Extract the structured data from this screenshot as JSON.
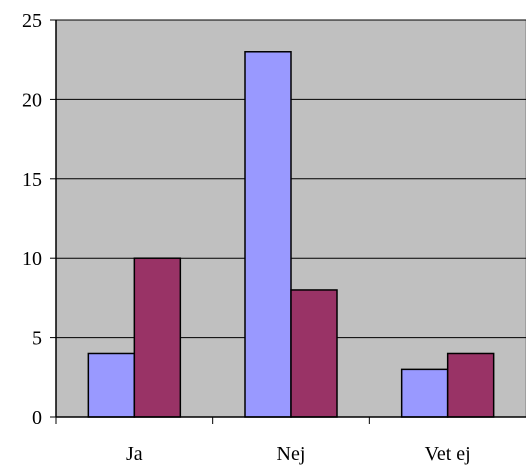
{
  "chart_data": {
    "type": "bar",
    "categories": [
      "Ja",
      "Nej",
      "Vet ej"
    ],
    "series": [
      {
        "values": [
          4,
          23,
          3
        ]
      },
      {
        "values": [
          10,
          8,
          4
        ]
      }
    ],
    "yticks": [
      "0",
      "5",
      "10",
      "15",
      "20",
      "25"
    ],
    "ylim": [
      0,
      25
    ],
    "grid": true,
    "legend": "none",
    "colors": {
      "plot_background": "#c0c0c0",
      "series": [
        "#9999ff",
        "#993366"
      ],
      "border": "#000000"
    }
  }
}
